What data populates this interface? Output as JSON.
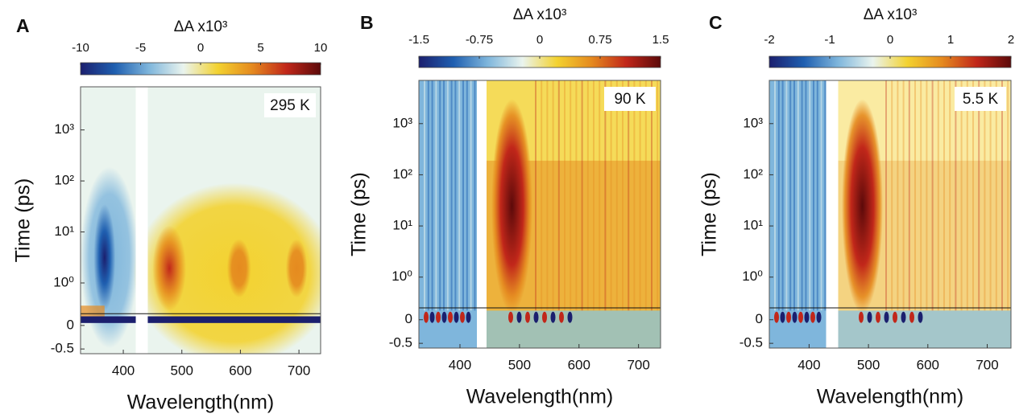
{
  "chart_data": [
    {
      "type": "heatmap",
      "panel_label": "A",
      "colorbar_label": "ΔA x10³",
      "clim": [
        -10,
        10
      ],
      "cticks": [
        -10,
        -5,
        0,
        5,
        10
      ],
      "annotation": "295 K",
      "xlabel": "Wavelength(nm)",
      "ylabel": "Time (ps)",
      "xlim": [
        327,
        737
      ],
      "xticks": [
        400,
        500,
        600,
        700
      ],
      "yscale": "symlog",
      "ylim": [
        -0.6,
        7000
      ],
      "yticks": [
        -0.5,
        0,
        {
          "value": 1,
          "label": "10⁰"
        },
        {
          "value": 10,
          "label": "10¹"
        },
        {
          "value": 100,
          "label": "10²"
        },
        {
          "value": 1000,
          "label": "10³"
        }
      ],
      "colormap": [
        "#1b1f6e",
        "#1f5fb0",
        "#7fb6dc",
        "#eaf4ee",
        "#f3d230",
        "#e58a1f",
        "#c1271a",
        "#5c0a0a"
      ]
    },
    {
      "type": "heatmap",
      "panel_label": "B",
      "colorbar_label": "ΔA x10³",
      "clim": [
        -1.5,
        1.5
      ],
      "cticks": [
        -1.5,
        -0.75,
        0,
        0.75,
        1.5
      ],
      "annotation": "90 K",
      "xlabel": "Wavelength(nm)",
      "ylabel": "Time (ps)",
      "xlim": [
        331,
        737
      ],
      "xticks": [
        400,
        500,
        600,
        700
      ],
      "yscale": "symlog",
      "ylim": [
        -0.6,
        7000
      ],
      "yticks": [
        -0.5,
        0,
        {
          "value": 1,
          "label": "10⁰"
        },
        {
          "value": 10,
          "label": "10¹"
        },
        {
          "value": 100,
          "label": "10²"
        },
        {
          "value": 1000,
          "label": "10³"
        }
      ],
      "colormap": [
        "#1b1f6e",
        "#1f5fb0",
        "#7fb6dc",
        "#eaf4ee",
        "#f3d230",
        "#e58a1f",
        "#c1271a",
        "#5c0a0a"
      ]
    },
    {
      "type": "heatmap",
      "panel_label": "C",
      "colorbar_label": "ΔA x10³",
      "clim": [
        -2,
        2
      ],
      "cticks": [
        -2,
        -1,
        0,
        1,
        2
      ],
      "annotation": "5.5 K",
      "xlabel": "Wavelength(nm)",
      "ylabel": "Time (ps)",
      "xlim": [
        333,
        740
      ],
      "xticks": [
        400,
        500,
        600,
        700
      ],
      "yscale": "symlog",
      "ylim": [
        -0.6,
        7000
      ],
      "yticks": [
        -0.5,
        0,
        {
          "value": 1,
          "label": "10⁰"
        },
        {
          "value": 10,
          "label": "10¹"
        },
        {
          "value": 100,
          "label": "10²"
        },
        {
          "value": 1000,
          "label": "10³"
        }
      ],
      "colormap": [
        "#1b1f6e",
        "#1f5fb0",
        "#7fb6dc",
        "#eaf4ee",
        "#f3d230",
        "#e58a1f",
        "#c1271a",
        "#5c0a0a"
      ]
    }
  ]
}
